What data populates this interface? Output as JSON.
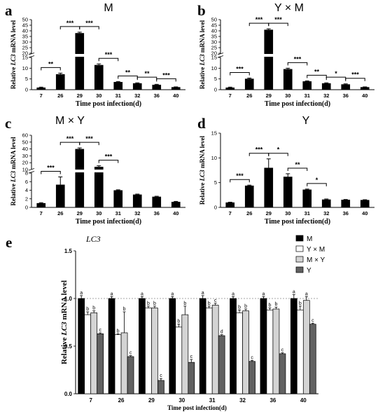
{
  "colors": {
    "black": "#000000",
    "ym": "#ffffff",
    "my": "#d4d4d4",
    "y": "#616161"
  },
  "chart_data": [
    {
      "id": "a",
      "panel_label": "a",
      "title": "M",
      "type": "bar",
      "ylabel_pre": "Relative ",
      "ylabel_gene": "LC3",
      "ylabel_post": " mRNA level",
      "xlabel": "Time post infection(d)",
      "categories": [
        "7",
        "26",
        "29",
        "30",
        "31",
        "32",
        "36",
        "40"
      ],
      "values": [
        1.0,
        7.2,
        38.0,
        11.5,
        3.6,
        3.0,
        2.3,
        1.2
      ],
      "errors": [
        0.2,
        0.5,
        0.8,
        0.5,
        0.2,
        0.2,
        0.2,
        0.1
      ],
      "y_ticks": [
        0,
        5,
        10,
        15,
        20,
        25,
        30,
        35,
        40,
        45,
        50
      ],
      "brackets": [
        {
          "from": "7",
          "to": "26",
          "label": "**"
        },
        {
          "from": "26",
          "to": "29",
          "label": "***"
        },
        {
          "from": "29",
          "to": "30",
          "label": "***"
        },
        {
          "from": "30",
          "to": "31",
          "label": "***"
        },
        {
          "from": "31",
          "to": "32",
          "label": "**"
        },
        {
          "from": "32",
          "to": "36",
          "label": "**"
        },
        {
          "from": "36",
          "to": "40",
          "label": "***"
        }
      ]
    },
    {
      "id": "b",
      "panel_label": "b",
      "title": "Y × M",
      "type": "bar",
      "ylabel_pre": "Relative ",
      "ylabel_gene": "LC3",
      "ylabel_post": " mRNA level",
      "xlabel": "Time post infection(d)",
      "categories": [
        "7",
        "26",
        "29",
        "30",
        "31",
        "32",
        "36",
        "40"
      ],
      "values": [
        1.0,
        5.1,
        41.0,
        9.6,
        3.9,
        3.0,
        2.5,
        1.2
      ],
      "errors": [
        0.2,
        0.3,
        0.8,
        0.4,
        0.2,
        0.2,
        0.2,
        0.1
      ],
      "y_ticks": [
        0,
        5,
        10,
        15,
        20,
        25,
        30,
        35,
        40,
        45,
        50
      ],
      "brackets": [
        {
          "from": "7",
          "to": "26",
          "label": "***"
        },
        {
          "from": "26",
          "to": "29",
          "label": "***"
        },
        {
          "from": "29",
          "to": "30",
          "label": "***"
        },
        {
          "from": "30",
          "to": "31",
          "label": "***"
        },
        {
          "from": "31",
          "to": "32",
          "label": "**"
        },
        {
          "from": "32",
          "to": "36",
          "label": "*"
        },
        {
          "from": "36",
          "to": "40",
          "label": "***"
        }
      ]
    },
    {
      "id": "c",
      "panel_label": "c",
      "title": "M × Y",
      "type": "bar",
      "ylabel_pre": "Relative ",
      "ylabel_gene": "LC3",
      "ylabel_post": " mRNA level",
      "xlabel": "Time post infection(d)",
      "categories": [
        "7",
        "26",
        "29",
        "30",
        "31",
        "32",
        "36",
        "40"
      ],
      "values": [
        1.0,
        5.3,
        40.0,
        14.0,
        4.0,
        3.0,
        2.5,
        1.3
      ],
      "errors": [
        0.1,
        1.8,
        1.5,
        1.5,
        0.1,
        0.1,
        0.1,
        0.1
      ],
      "y_ticks": [
        0,
        2,
        4,
        6,
        8,
        10,
        20,
        30,
        40,
        50,
        60
      ],
      "brackets": [
        {
          "from": "7",
          "to": "26",
          "label": "***"
        },
        {
          "from": "26",
          "to": "29",
          "label": "***"
        },
        {
          "from": "29",
          "to": "30",
          "label": "***"
        },
        {
          "from": "30",
          "to": "31",
          "label": "***"
        }
      ]
    },
    {
      "id": "d",
      "panel_label": "d",
      "title": "Y",
      "type": "bar",
      "ylabel_pre": "Relative ",
      "ylabel_gene": "LC3",
      "ylabel_post": " mRNA level",
      "xlabel": "Time post infection(d)",
      "categories": [
        "7",
        "26",
        "29",
        "30",
        "31",
        "32",
        "36",
        "40"
      ],
      "values": [
        1.0,
        4.4,
        8.0,
        6.2,
        3.6,
        1.6,
        1.55,
        1.5
      ],
      "errors": [
        0.05,
        0.1,
        1.8,
        0.6,
        0.1,
        0.1,
        0.05,
        0.05
      ],
      "ylim": [
        0,
        15
      ],
      "y_ticks": [
        0,
        5,
        10,
        15
      ],
      "brackets": [
        {
          "from": "7",
          "to": "26",
          "label": "***"
        },
        {
          "from": "26",
          "to": "29",
          "label": "***"
        },
        {
          "from": "29",
          "to": "30",
          "label": "*"
        },
        {
          "from": "30",
          "to": "31",
          "label": "**"
        },
        {
          "from": "31",
          "to": "32",
          "label": "*"
        }
      ]
    },
    {
      "id": "e",
      "panel_label": "e",
      "title": "LC3",
      "type": "bar",
      "ylabel_pre": "Relative ",
      "ylabel_gene": "LC3",
      "ylabel_post": " mRNA level",
      "xlabel": "Time post infection(d)",
      "categories": [
        "7",
        "26",
        "29",
        "30",
        "31",
        "32",
        "36",
        "40"
      ],
      "ylim": [
        0,
        1.5
      ],
      "y_ticks": [
        "0.0",
        "0.5",
        "1.0",
        "1.5"
      ],
      "series": [
        {
          "name": "M",
          "values": [
            1.0,
            1.0,
            1.0,
            1.0,
            1.0,
            1.0,
            1.0,
            1.0
          ],
          "errors": [
            0.03,
            0.02,
            0.02,
            0.02,
            0.03,
            0.02,
            0.02,
            0.04
          ],
          "letters": [
            "a",
            "a",
            "a",
            "a",
            "a",
            "a",
            "a",
            "a"
          ]
        },
        {
          "name": "Y × M",
          "values": [
            0.83,
            0.62,
            0.9,
            0.7,
            0.9,
            0.85,
            0.88,
            0.88
          ],
          "errors": [
            0.03,
            0.01,
            0.02,
            0.03,
            0.02,
            0.03,
            0.02,
            0.04
          ],
          "letters": [
            "b",
            "b",
            "b",
            "b",
            "b",
            "b",
            "b",
            "b"
          ]
        },
        {
          "name": "M × Y",
          "values": [
            0.85,
            0.64,
            0.9,
            0.83,
            0.93,
            0.87,
            0.89,
            0.98
          ],
          "errors": [
            0.02,
            0.22,
            0.02,
            0.09,
            0.02,
            0.02,
            0.02,
            0.04
          ],
          "letters": [
            "b",
            "b",
            "b",
            "b",
            "c",
            "b",
            "b",
            "a"
          ]
        },
        {
          "name": "Y",
          "values": [
            0.63,
            0.39,
            0.14,
            0.33,
            0.61,
            0.34,
            0.42,
            0.73
          ],
          "errors": [
            0.01,
            0.01,
            0.02,
            0.03,
            0.01,
            0.01,
            0.01,
            0.01
          ],
          "letters": [
            "c",
            "c",
            "c",
            "c",
            "d",
            "c",
            "c",
            "c"
          ]
        }
      ]
    }
  ]
}
